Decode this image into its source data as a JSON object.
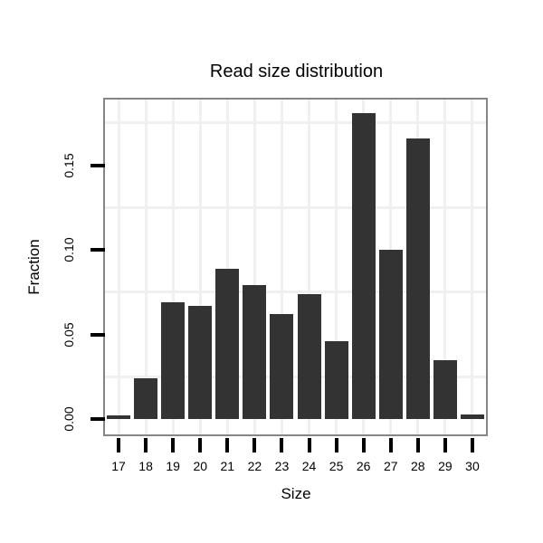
{
  "chart_data": {
    "type": "bar",
    "title": "Read size distribution",
    "xlabel": "Size",
    "ylabel": "Fraction",
    "categories": [
      "17",
      "18",
      "19",
      "20",
      "21",
      "22",
      "23",
      "24",
      "25",
      "26",
      "27",
      "28",
      "29",
      "30"
    ],
    "values": [
      0.002,
      0.024,
      0.069,
      0.067,
      0.089,
      0.079,
      0.062,
      0.074,
      0.046,
      0.181,
      0.1,
      0.166,
      0.035,
      0.003
    ],
    "ytick_values": [
      0.0,
      0.05,
      0.1,
      0.15
    ],
    "ytick_labels": [
      "0.00",
      "0.05",
      "0.10",
      "0.15"
    ],
    "minor_gridline_values": [
      0.025,
      0.075,
      0.125,
      0.175
    ],
    "ylim": [
      -0.009,
      0.189
    ],
    "grid": "light vertical line at each category center; light horizontal lines midway between y ticks",
    "legend_position": "none",
    "colors": {
      "bar_fill": "#333333",
      "panel_border": "#858585",
      "gridline": "#f0f0f0",
      "text": "#000000",
      "background": "#ffffff"
    }
  }
}
